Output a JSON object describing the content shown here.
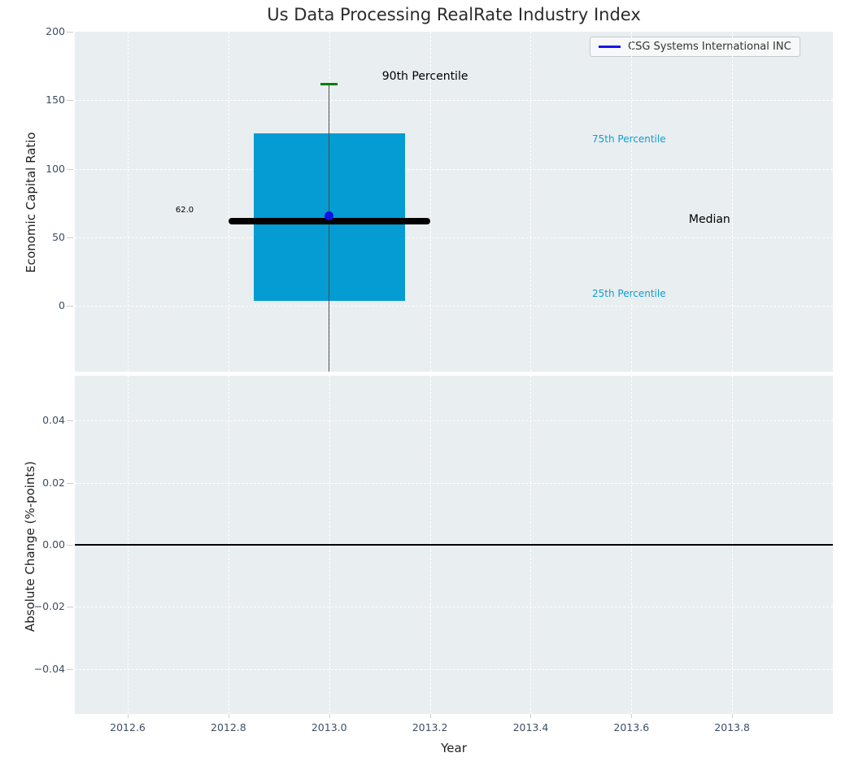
{
  "title": "Us Data Processing RealRate Industry Index",
  "legend": {
    "label": "CSG Systems International INC",
    "line_color": "#1414E6"
  },
  "axes": {
    "top": {
      "ylabel": "Economic Capital Ratio"
    },
    "bottom": {
      "ylabel": "Absolute Change (%-points)",
      "xlabel": "Year"
    }
  },
  "colors": {
    "plot_bg": "#E9EEF0",
    "grid": "#ffffff",
    "tick_label": "#3E4E63",
    "box_fill": "#049CD2",
    "percentile_text": "#0E9FD4",
    "median_line": "#000000",
    "whisker": "#4d4d4d",
    "p90_cap": "#008000",
    "company_marker": "#1010E8",
    "zero_line": "#000000"
  },
  "chart_data": [
    {
      "type": "boxplot",
      "title": "Us Data Processing RealRate Industry Index",
      "ylabel": "Economic Capital Ratio",
      "xlim": [
        2012.495,
        2014.0
      ],
      "ylim": [
        -48,
        200
      ],
      "grid": true,
      "legend_position": "upper right",
      "yticks": [
        {
          "label": "200",
          "v": 200
        },
        {
          "label": "150",
          "v": 150
        },
        {
          "label": "100",
          "v": 100
        },
        {
          "label": "50",
          "v": 50
        },
        {
          "label": "0",
          "v": 0
        }
      ],
      "x_center": 2013.0,
      "box_x_span": [
        2012.85,
        2013.15
      ],
      "median_x_span": [
        2012.8,
        2013.2
      ],
      "cap_x_span": [
        2012.983,
        2013.017
      ],
      "percentiles": {
        "p25": 3.5,
        "median": 62.0,
        "p75": 126.0,
        "p90": 162.0
      },
      "whisker_top": 162.0,
      "whisker_bottom_clipped_at": -48,
      "median_value_label": "62.0",
      "company_point": {
        "name": "CSG Systems International INC",
        "x": 2013.0,
        "y": 65.8
      },
      "annotations": [
        {
          "text": "90th Percentile",
          "x": 2013.105,
          "y": 166,
          "color": "#000000",
          "size": 14
        },
        {
          "text": "75th Percentile",
          "x": 2013.522,
          "y": 121,
          "color": "#0E9FD4",
          "size": 12
        },
        {
          "text": "Median",
          "x": 2013.714,
          "y": 62,
          "color": "#000000",
          "size": 14
        },
        {
          "text": "25th Percentile",
          "x": 2013.522,
          "y": 8,
          "color": "#0E9FD4",
          "size": 12
        },
        {
          "text": "62.0",
          "x": 2012.695,
          "y": 69,
          "color": "#000000",
          "size": 10
        }
      ]
    },
    {
      "type": "line",
      "ylabel": "Absolute Change (%-points)",
      "xlabel": "Year",
      "xlim": [
        2012.495,
        2014.0
      ],
      "ylim": [
        -0.0545,
        0.0545
      ],
      "grid": true,
      "zero_line_y": 0.0,
      "series": [
        {
          "name": "CSG Systems International INC",
          "values": []
        }
      ],
      "yticks": [
        {
          "label": "0.04",
          "v": 0.04
        },
        {
          "label": "0.02",
          "v": 0.02
        },
        {
          "label": "0.00",
          "v": 0.0
        },
        {
          "label": "−0.02",
          "v": -0.02
        },
        {
          "label": "−0.04",
          "v": -0.04
        }
      ],
      "xticks": [
        {
          "label": "2012.6",
          "v": 2012.6
        },
        {
          "label": "2012.8",
          "v": 2012.8
        },
        {
          "label": "2013.0",
          "v": 2013.0
        },
        {
          "label": "2013.2",
          "v": 2013.2
        },
        {
          "label": "2013.4",
          "v": 2013.4
        },
        {
          "label": "2013.6",
          "v": 2013.6
        },
        {
          "label": "2013.8",
          "v": 2013.8
        }
      ]
    }
  ]
}
